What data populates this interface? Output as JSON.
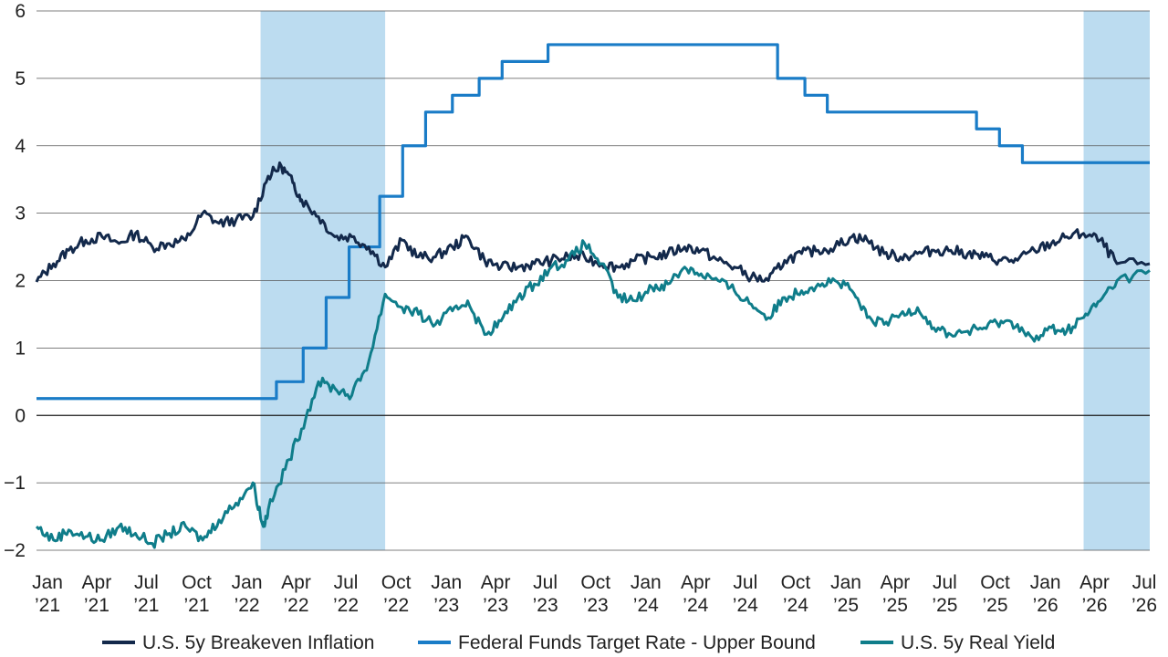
{
  "chart_data": {
    "type": "line",
    "title": "",
    "xlabel": "",
    "ylabel": "",
    "ylim": [
      -2,
      6
    ],
    "yticks": [
      "6",
      "5",
      "4",
      "3",
      "2",
      "1",
      "0",
      "−1",
      "−2"
    ],
    "ytick_values": [
      6,
      5,
      4,
      3,
      2,
      1,
      0,
      -1,
      -2
    ],
    "xlim": [
      "2021-01-01",
      "2026-07-31"
    ],
    "xticks": [
      {
        "date": "2021-01-01",
        "line1": "Jan",
        "line2": "’21"
      },
      {
        "date": "2021-04-01",
        "line1": "Apr",
        "line2": "’21"
      },
      {
        "date": "2021-07-01",
        "line1": "Jul",
        "line2": "’21"
      },
      {
        "date": "2021-10-01",
        "line1": "Oct",
        "line2": "’21"
      },
      {
        "date": "2022-01-01",
        "line1": "Jan",
        "line2": "’22"
      },
      {
        "date": "2022-04-01",
        "line1": "Apr",
        "line2": "’22"
      },
      {
        "date": "2022-07-01",
        "line1": "Jul",
        "line2": "’22"
      },
      {
        "date": "2022-10-01",
        "line1": "Oct",
        "line2": "’22"
      },
      {
        "date": "2023-01-01",
        "line1": "Jan",
        "line2": "’23"
      },
      {
        "date": "2023-04-01",
        "line1": "Apr",
        "line2": "’23"
      },
      {
        "date": "2023-07-01",
        "line1": "Jul",
        "line2": "’23"
      },
      {
        "date": "2023-10-01",
        "line1": "Oct",
        "line2": "’23"
      },
      {
        "date": "2024-01-01",
        "line1": "Jan",
        "line2": "’24"
      },
      {
        "date": "2024-04-01",
        "line1": "Apr",
        "line2": "’24"
      },
      {
        "date": "2024-07-01",
        "line1": "Jul",
        "line2": "’24"
      },
      {
        "date": "2024-10-01",
        "line1": "Oct",
        "line2": "’24"
      },
      {
        "date": "2025-01-01",
        "line1": "Jan",
        "line2": "’25"
      },
      {
        "date": "2025-04-01",
        "line1": "Apr",
        "line2": "’25"
      },
      {
        "date": "2025-07-01",
        "line1": "Jul",
        "line2": "’25"
      },
      {
        "date": "2025-10-01",
        "line1": "Oct",
        "line2": "’25"
      },
      {
        "date": "2026-01-01",
        "line1": "Jan",
        "line2": "’26"
      },
      {
        "date": "2026-04-01",
        "line1": "Apr",
        "line2": "’26"
      },
      {
        "date": "2026-07-01",
        "line1": "Jul",
        "line2": "’26"
      }
    ],
    "grid": {
      "horizontal": true,
      "vertical": false
    },
    "legend_position": "bottom",
    "shaded_periods": [
      {
        "start": "2022-02-15",
        "end": "2022-10-01"
      },
      {
        "start": "2026-04-01",
        "end": "2026-07-31"
      }
    ],
    "series": [
      {
        "name": "U.S. 5y Breakeven Inflation",
        "color": "#13294b",
        "style": "line",
        "points": [
          [
            "2021-01-01",
            1.98
          ],
          [
            "2021-02-01",
            2.25
          ],
          [
            "2021-03-01",
            2.45
          ],
          [
            "2021-04-01",
            2.6
          ],
          [
            "2021-05-01",
            2.65
          ],
          [
            "2021-06-01",
            2.55
          ],
          [
            "2021-07-01",
            2.7
          ],
          [
            "2021-08-01",
            2.5
          ],
          [
            "2021-09-01",
            2.55
          ],
          [
            "2021-10-01",
            2.6
          ],
          [
            "2021-11-01",
            3.0
          ],
          [
            "2021-12-01",
            2.85
          ],
          [
            "2022-01-01",
            2.9
          ],
          [
            "2022-02-01",
            2.95
          ],
          [
            "2022-03-01",
            3.55
          ],
          [
            "2022-03-25",
            3.7
          ],
          [
            "2022-04-15",
            3.45
          ],
          [
            "2022-05-01",
            3.2
          ],
          [
            "2022-06-01",
            2.95
          ],
          [
            "2022-07-01",
            2.65
          ],
          [
            "2022-08-01",
            2.65
          ],
          [
            "2022-09-01",
            2.5
          ],
          [
            "2022-10-01",
            2.2
          ],
          [
            "2022-11-01",
            2.6
          ],
          [
            "2022-12-01",
            2.35
          ],
          [
            "2023-01-01",
            2.35
          ],
          [
            "2023-02-01",
            2.5
          ],
          [
            "2023-03-01",
            2.65
          ],
          [
            "2023-04-01",
            2.3
          ],
          [
            "2023-05-01",
            2.2
          ],
          [
            "2023-06-01",
            2.2
          ],
          [
            "2023-07-01",
            2.25
          ],
          [
            "2023-08-01",
            2.3
          ],
          [
            "2023-09-01",
            2.35
          ],
          [
            "2023-10-01",
            2.35
          ],
          [
            "2023-11-01",
            2.25
          ],
          [
            "2023-12-01",
            2.2
          ],
          [
            "2024-01-01",
            2.3
          ],
          [
            "2024-02-01",
            2.35
          ],
          [
            "2024-03-01",
            2.4
          ],
          [
            "2024-04-01",
            2.5
          ],
          [
            "2024-05-01",
            2.45
          ],
          [
            "2024-06-01",
            2.3
          ],
          [
            "2024-07-01",
            2.2
          ],
          [
            "2024-08-01",
            2.05
          ],
          [
            "2024-09-01",
            2.0
          ],
          [
            "2024-10-01",
            2.3
          ],
          [
            "2024-11-01",
            2.4
          ],
          [
            "2024-12-01",
            2.45
          ],
          [
            "2025-01-01",
            2.5
          ],
          [
            "2025-02-01",
            2.65
          ],
          [
            "2025-03-01",
            2.6
          ],
          [
            "2025-04-01",
            2.4
          ],
          [
            "2025-05-01",
            2.35
          ],
          [
            "2025-06-01",
            2.4
          ],
          [
            "2025-07-01",
            2.45
          ],
          [
            "2025-08-01",
            2.45
          ],
          [
            "2025-09-01",
            2.4
          ],
          [
            "2025-10-01",
            2.35
          ],
          [
            "2025-11-01",
            2.3
          ],
          [
            "2025-12-01",
            2.3
          ],
          [
            "2026-01-01",
            2.45
          ],
          [
            "2026-02-01",
            2.55
          ],
          [
            "2026-03-01",
            2.65
          ],
          [
            "2026-04-01",
            2.7
          ],
          [
            "2026-05-01",
            2.6
          ],
          [
            "2026-06-01",
            2.25
          ],
          [
            "2026-07-31",
            2.25
          ]
        ]
      },
      {
        "name": "Federal Funds Target Rate - Upper Bound",
        "color": "#1a7cc7",
        "style": "step",
        "points": [
          [
            "2021-01-01",
            0.25
          ],
          [
            "2022-03-16",
            0.5
          ],
          [
            "2022-05-04",
            1.0
          ],
          [
            "2022-06-15",
            1.75
          ],
          [
            "2022-07-27",
            2.5
          ],
          [
            "2022-09-21",
            3.25
          ],
          [
            "2022-11-02",
            4.0
          ],
          [
            "2022-12-14",
            4.5
          ],
          [
            "2023-02-01",
            4.75
          ],
          [
            "2023-03-22",
            5.0
          ],
          [
            "2023-05-03",
            5.25
          ],
          [
            "2023-07-26",
            5.5
          ],
          [
            "2024-09-18",
            5.0
          ],
          [
            "2024-11-07",
            4.75
          ],
          [
            "2024-12-18",
            4.5
          ],
          [
            "2025-09-17",
            4.25
          ],
          [
            "2025-10-29",
            4.0
          ],
          [
            "2025-12-10",
            3.75
          ],
          [
            "2026-07-31",
            3.75
          ]
        ]
      },
      {
        "name": "U.S. 5y Real Yield",
        "color": "#0f7d8a",
        "style": "line",
        "points": [
          [
            "2021-01-01",
            -1.65
          ],
          [
            "2021-02-01",
            -1.85
          ],
          [
            "2021-03-01",
            -1.7
          ],
          [
            "2021-04-01",
            -1.8
          ],
          [
            "2021-05-01",
            -1.85
          ],
          [
            "2021-06-01",
            -1.65
          ],
          [
            "2021-07-01",
            -1.75
          ],
          [
            "2021-08-01",
            -1.9
          ],
          [
            "2021-09-01",
            -1.75
          ],
          [
            "2021-10-01",
            -1.65
          ],
          [
            "2021-11-01",
            -1.85
          ],
          [
            "2021-12-01",
            -1.55
          ],
          [
            "2022-01-01",
            -1.3
          ],
          [
            "2022-02-01",
            -1.0
          ],
          [
            "2022-02-20",
            -1.65
          ],
          [
            "2022-03-01",
            -1.4
          ],
          [
            "2022-04-01",
            -0.8
          ],
          [
            "2022-05-01",
            -0.2
          ],
          [
            "2022-06-01",
            0.5
          ],
          [
            "2022-07-01",
            0.4
          ],
          [
            "2022-08-01",
            0.3
          ],
          [
            "2022-09-01",
            0.8
          ],
          [
            "2022-10-01",
            1.8
          ],
          [
            "2022-11-01",
            1.6
          ],
          [
            "2022-12-01",
            1.5
          ],
          [
            "2023-01-01",
            1.35
          ],
          [
            "2023-02-01",
            1.55
          ],
          [
            "2023-03-01",
            1.7
          ],
          [
            "2023-04-01",
            1.2
          ],
          [
            "2023-05-01",
            1.4
          ],
          [
            "2023-06-01",
            1.75
          ],
          [
            "2023-07-01",
            1.95
          ],
          [
            "2023-08-01",
            2.2
          ],
          [
            "2023-09-01",
            2.3
          ],
          [
            "2023-10-01",
            2.55
          ],
          [
            "2023-11-01",
            2.25
          ],
          [
            "2023-12-01",
            1.75
          ],
          [
            "2024-01-01",
            1.7
          ],
          [
            "2024-02-01",
            1.9
          ],
          [
            "2024-03-01",
            1.95
          ],
          [
            "2024-04-01",
            2.2
          ],
          [
            "2024-05-01",
            2.1
          ],
          [
            "2024-06-01",
            2.0
          ],
          [
            "2024-07-01",
            1.85
          ],
          [
            "2024-08-01",
            1.65
          ],
          [
            "2024-09-01",
            1.45
          ],
          [
            "2024-10-01",
            1.75
          ],
          [
            "2024-11-01",
            1.85
          ],
          [
            "2024-12-01",
            1.95
          ],
          [
            "2025-01-01",
            2.0
          ],
          [
            "2025-02-01",
            1.85
          ],
          [
            "2025-03-01",
            1.45
          ],
          [
            "2025-04-01",
            1.35
          ],
          [
            "2025-05-01",
            1.5
          ],
          [
            "2025-06-01",
            1.6
          ],
          [
            "2025-07-01",
            1.3
          ],
          [
            "2025-08-01",
            1.2
          ],
          [
            "2025-09-01",
            1.25
          ],
          [
            "2025-10-01",
            1.3
          ],
          [
            "2025-11-01",
            1.4
          ],
          [
            "2025-12-01",
            1.35
          ],
          [
            "2026-01-01",
            1.1
          ],
          [
            "2026-02-01",
            1.3
          ],
          [
            "2026-03-01",
            1.25
          ],
          [
            "2026-04-01",
            1.45
          ],
          [
            "2026-05-01",
            1.7
          ],
          [
            "2026-06-01",
            2.0
          ],
          [
            "2026-07-31",
            2.15
          ]
        ]
      }
    ]
  }
}
